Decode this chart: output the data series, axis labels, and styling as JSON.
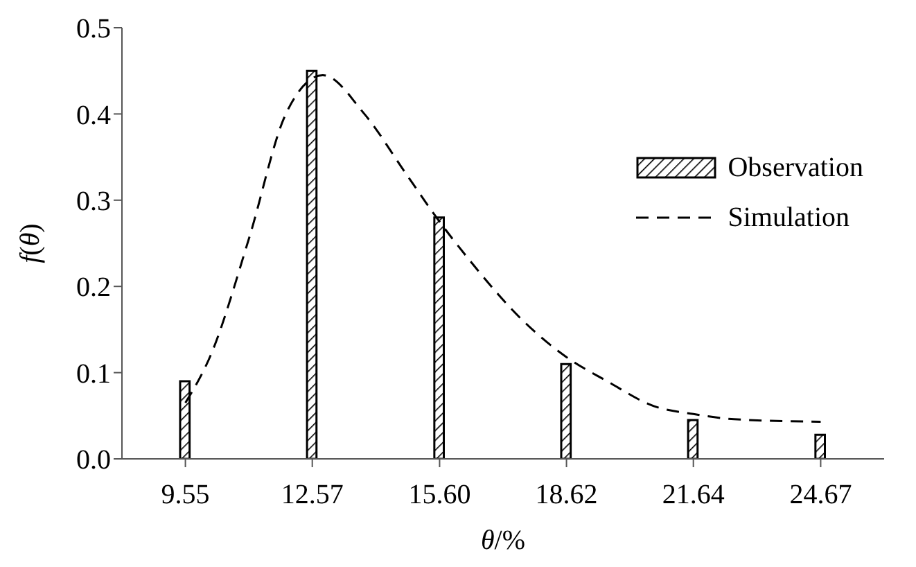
{
  "chart_data": {
    "type": "bar",
    "xlabel": "θ/%",
    "ylabel": "f(θ)",
    "x": [
      9.55,
      12.57,
      15.6,
      18.62,
      21.64,
      24.67
    ],
    "xlim": [
      8.04,
      26.18
    ],
    "xticks": [
      9.55,
      12.57,
      {
        "value": 15.6,
        "label": "15.60"
      },
      18.62,
      21.64,
      24.67
    ],
    "ylim": [
      0,
      0.5
    ],
    "yticks": [
      {
        "value": 0,
        "label": "0.0"
      },
      0.1,
      0.2,
      0.3,
      0.4,
      0.5
    ],
    "series": [
      {
        "name": "Observation",
        "color": "#000000",
        "values": [
          0.09,
          0.45,
          0.28,
          0.11,
          0.045,
          0.028
        ]
      },
      {
        "name": "Simulation",
        "type": "line",
        "color": "#000000",
        "line_style": "dashed",
        "marker": "none",
        "x": [
          9.55,
          10.15,
          11.06,
          11.94,
          12.82,
          13.81,
          14.81,
          15.6,
          16.32,
          17.59,
          18.62,
          19.59,
          20.71,
          21.64,
          22.61,
          24.67
        ],
        "values": [
          0.065,
          0.12,
          0.255,
          0.4,
          0.445,
          0.4,
          0.33,
          0.275,
          0.23,
          0.16,
          0.118,
          0.09,
          0.061,
          0.052,
          0.046,
          0.043
        ]
      }
    ],
    "legend": "right",
    "grid": false
  }
}
